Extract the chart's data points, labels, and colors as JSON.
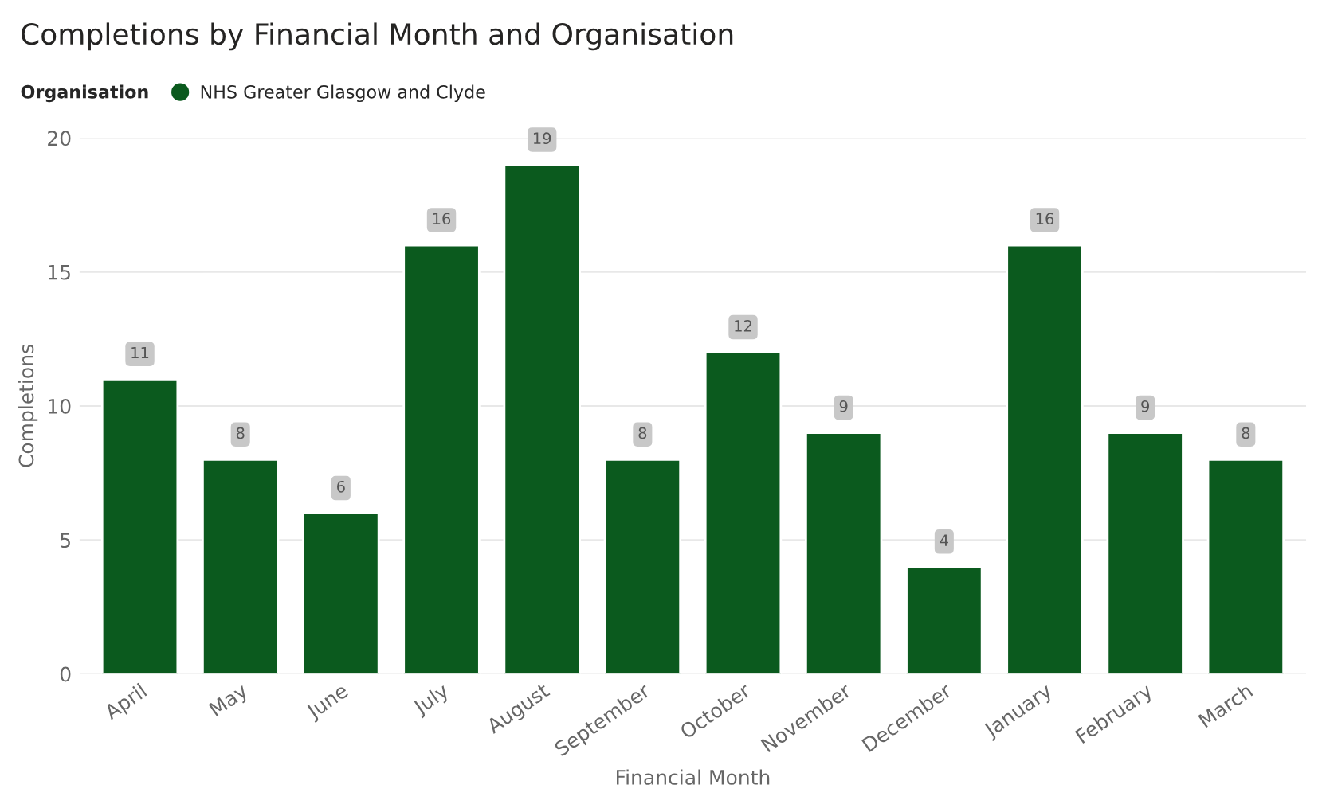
{
  "chart_data": {
    "type": "bar",
    "title": "Completions by Financial Month and Organisation",
    "xlabel": "Financial Month",
    "ylabel": "Completions",
    "legend_title": "Organisation",
    "categories": [
      "April",
      "May",
      "June",
      "July",
      "August",
      "September",
      "October",
      "November",
      "December",
      "January",
      "February",
      "March"
    ],
    "series": [
      {
        "name": "NHS Greater Glasgow and Clyde",
        "color": "#0b5a1e",
        "values": [
          11,
          8,
          6,
          16,
          19,
          8,
          12,
          9,
          4,
          16,
          9,
          8
        ]
      }
    ],
    "ylim": [
      0,
      20
    ],
    "yticks": [
      0,
      5,
      10,
      15,
      20
    ],
    "grid": "y",
    "legend": "top left",
    "data_labels": true
  }
}
